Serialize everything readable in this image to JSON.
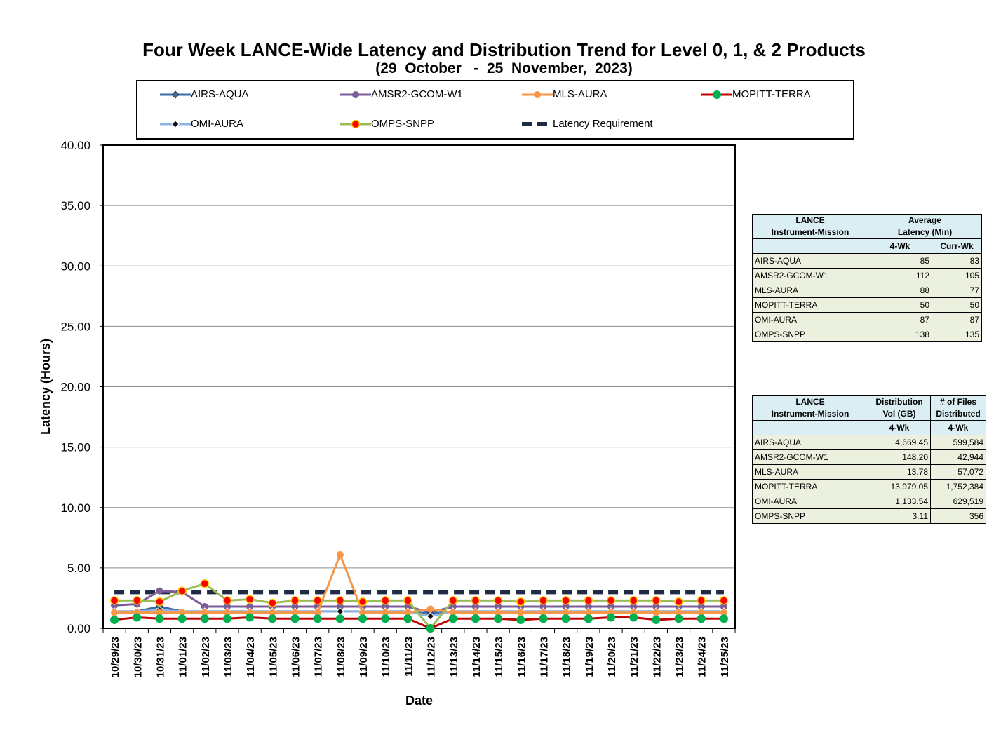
{
  "title": "Four Week LANCE-Wide Latency and Distribution Trend for Level 0, 1, & 2 Products",
  "subtitle": "(29  October   -  25  November,  2023)",
  "legend": [
    {
      "name": "AIRS-AQUA",
      "color": "#3a6ea5",
      "marker": "diamond",
      "dash": false
    },
    {
      "name": "AMSR2-GCOM-W1",
      "color": "#7a5c99",
      "marker": "circle",
      "dash": false
    },
    {
      "name": "MLS-AURA",
      "color": "#f79646",
      "marker": "circle",
      "dash": false
    },
    {
      "name": "MOPITT-TERRA",
      "color": "#c00000",
      "marker": "circle-green",
      "dash": false
    },
    {
      "name": "OMI-AURA",
      "color": "#8db3e2",
      "marker": "diamond-small",
      "dash": false
    },
    {
      "name": "OMPS-SNPP",
      "color": "#9bbb59",
      "marker": "circle-red",
      "dash": false
    },
    {
      "name": "Latency Requirement",
      "color": "#1f2a44",
      "marker": "none",
      "dash": true
    }
  ],
  "chart_data": {
    "type": "line",
    "xlabel": "Date",
    "ylabel": "Latency (Hours)",
    "ylim": [
      0,
      40
    ],
    "yticks": [
      "0.00",
      "5.00",
      "10.00",
      "15.00",
      "20.00",
      "25.00",
      "30.00",
      "35.00",
      "40.00"
    ],
    "x": [
      "10/29/23",
      "10/30/23",
      "10/31/23",
      "11/01/23",
      "11/02/23",
      "11/03/23",
      "11/04/23",
      "11/05/23",
      "11/06/23",
      "11/07/23",
      "11/08/23",
      "11/09/23",
      "11/10/23",
      "11/11/23",
      "11/12/23",
      "11/13/23",
      "11/14/23",
      "11/15/23",
      "11/16/23",
      "11/17/23",
      "11/18/23",
      "11/19/23",
      "11/20/23",
      "11/21/23",
      "11/22/23",
      "11/23/23",
      "11/24/23",
      "11/25/23"
    ],
    "series": [
      {
        "name": "Latency Requirement",
        "color": "#1f2a44",
        "values": [
          3,
          3,
          3,
          3,
          3,
          3,
          3,
          3,
          3,
          3,
          3,
          3,
          3,
          3,
          3,
          3,
          3,
          3,
          3,
          3,
          3,
          3,
          3,
          3,
          3,
          3,
          3,
          3
        ]
      },
      {
        "name": "AMSR2-GCOM-W1",
        "color": "#7a5c99",
        "values": [
          1.9,
          2.0,
          3.1,
          3.0,
          1.8,
          1.8,
          1.8,
          1.8,
          1.8,
          1.8,
          1.8,
          1.8,
          1.8,
          1.8,
          1.3,
          1.8,
          1.8,
          1.8,
          1.8,
          1.8,
          1.8,
          1.8,
          1.8,
          1.8,
          1.8,
          1.8,
          1.8,
          1.8
        ]
      },
      {
        "name": "AIRS-AQUA",
        "color": "#3a6ea5",
        "values": [
          1.4,
          1.4,
          1.8,
          1.4,
          1.4,
          1.4,
          1.4,
          1.4,
          1.4,
          1.4,
          1.4,
          1.4,
          1.4,
          1.4,
          1.2,
          1.4,
          1.4,
          1.4,
          1.4,
          1.4,
          1.4,
          1.4,
          1.4,
          1.4,
          1.4,
          1.4,
          1.4,
          1.4
        ]
      },
      {
        "name": "OMI-AURA",
        "color": "#8db3e2",
        "values": [
          1.4,
          1.4,
          1.5,
          1.4,
          1.4,
          1.4,
          1.4,
          1.4,
          1.4,
          1.4,
          1.4,
          1.4,
          1.4,
          1.4,
          1.0,
          1.4,
          1.4,
          1.4,
          1.4,
          1.4,
          1.4,
          1.4,
          1.4,
          1.4,
          1.4,
          1.4,
          1.4,
          1.4
        ]
      },
      {
        "name": "MLS-AURA",
        "color": "#f79646",
        "values": [
          1.3,
          1.3,
          1.3,
          1.3,
          1.3,
          1.3,
          1.3,
          1.3,
          1.3,
          1.3,
          6.1,
          1.3,
          1.3,
          1.3,
          1.6,
          1.3,
          1.3,
          1.3,
          1.3,
          1.3,
          1.3,
          1.3,
          1.3,
          1.3,
          1.3,
          1.3,
          1.3,
          1.3
        ]
      },
      {
        "name": "OMPS-SNPP",
        "color": "#9bbb59",
        "values": [
          2.3,
          2.3,
          2.2,
          3.1,
          3.7,
          2.3,
          2.4,
          2.1,
          2.3,
          2.3,
          2.3,
          2.2,
          2.3,
          2.3,
          0.0,
          2.3,
          2.3,
          2.3,
          2.2,
          2.3,
          2.3,
          2.3,
          2.3,
          2.3,
          2.3,
          2.2,
          2.3,
          2.3
        ]
      },
      {
        "name": "MOPITT-TERRA",
        "color": "#c00000",
        "values": [
          0.7,
          0.9,
          0.8,
          0.8,
          0.8,
          0.8,
          0.9,
          0.8,
          0.8,
          0.8,
          0.8,
          0.8,
          0.8,
          0.8,
          0.0,
          0.8,
          0.8,
          0.8,
          0.7,
          0.8,
          0.8,
          0.8,
          0.9,
          0.9,
          0.7,
          0.8,
          0.8,
          0.8
        ]
      }
    ]
  },
  "table1": {
    "header_col1": [
      "LANCE",
      "Instrument-Mission"
    ],
    "header_group": [
      "Average",
      "Latency (Min)"
    ],
    "sub_headers": [
      "4-Wk",
      "Curr-Wk"
    ],
    "rows": [
      {
        "name": "AIRS-AQUA",
        "a": "85",
        "b": "83"
      },
      {
        "name": "AMSR2-GCOM-W1",
        "a": "112",
        "b": "105"
      },
      {
        "name": "MLS-AURA",
        "a": "88",
        "b": "77"
      },
      {
        "name": "MOPITT-TERRA",
        "a": "50",
        "b": "50"
      },
      {
        "name": "OMI-AURA",
        "a": "87",
        "b": "87"
      },
      {
        "name": "OMPS-SNPP",
        "a": "138",
        "b": "135"
      }
    ]
  },
  "table2": {
    "header_col1": [
      "LANCE",
      "Instrument-Mission"
    ],
    "header_col2": [
      "Distribution",
      "Vol (GB)"
    ],
    "header_col3": [
      "# of Files",
      "Distributed"
    ],
    "sub_headers": [
      "4-Wk",
      "4-Wk"
    ],
    "rows": [
      {
        "name": "AIRS-AQUA",
        "a": "4,669.45",
        "b": "599,584"
      },
      {
        "name": "AMSR2-GCOM-W1",
        "a": "148.20",
        "b": "42,944"
      },
      {
        "name": "MLS-AURA",
        "a": "13.78",
        "b": "57,072"
      },
      {
        "name": "MOPITT-TERRA",
        "a": "13,979.05",
        "b": "1,752,384"
      },
      {
        "name": "OMI-AURA",
        "a": "1,133.54",
        "b": "629,519"
      },
      {
        "name": "OMPS-SNPP",
        "a": "3.11",
        "b": "356"
      }
    ]
  }
}
